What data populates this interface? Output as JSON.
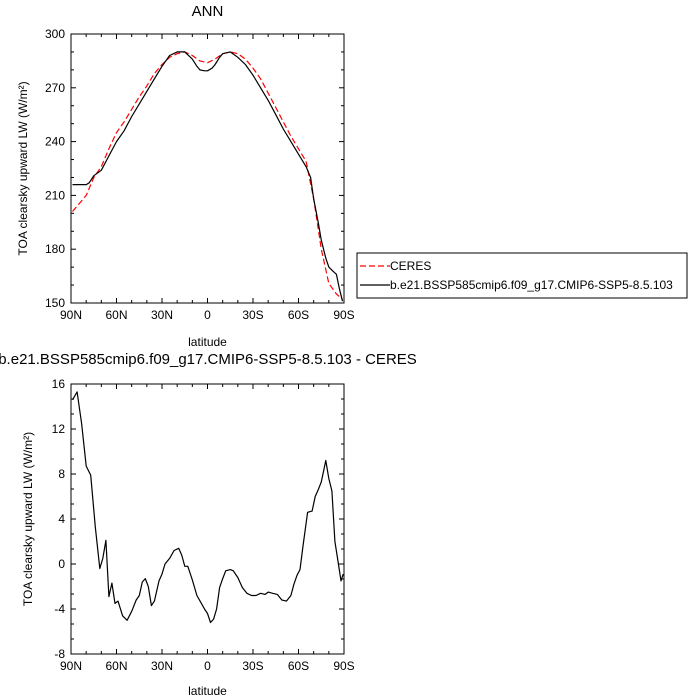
{
  "chart_data": [
    {
      "type": "line",
      "title": "ANN",
      "xlabel": "latitude",
      "ylabel": "TOA clearsky upward LW (W/m²)",
      "xlim": [
        90,
        -90
      ],
      "ylim": [
        150,
        300
      ],
      "x_ticks": [
        "90N",
        "60N",
        "30N",
        "0",
        "30S",
        "60S",
        "90S"
      ],
      "y_ticks": [
        "150",
        "180",
        "210",
        "240",
        "270",
        "300"
      ],
      "legend_position": "right",
      "series": [
        {
          "name": "CERES",
          "style": "dashed",
          "color": "#ff0000",
          "x": [
            89,
            85,
            80,
            75,
            70,
            65,
            60,
            55,
            50,
            45,
            40,
            35,
            30,
            25,
            20,
            15,
            10,
            5,
            0,
            -5,
            -10,
            -15,
            -20,
            -25,
            -30,
            -35,
            -40,
            -45,
            -50,
            -55,
            -60,
            -65,
            -70,
            -75,
            -80,
            -85,
            -89
          ],
          "y": [
            201,
            205,
            210,
            220,
            226,
            236,
            245,
            251,
            258,
            265,
            271,
            278,
            283,
            287,
            289,
            290,
            288,
            285,
            284,
            286,
            289,
            290,
            289,
            286,
            281,
            275,
            267,
            259,
            251,
            243,
            236,
            229,
            208,
            180,
            161,
            155,
            152
          ]
        },
        {
          "name": "b.e21.BSSP585cmip6.f09_g17.CMIP6-SSP5-8.5.103",
          "style": "solid",
          "color": "#000000",
          "x": [
            89,
            85,
            80,
            78,
            75,
            70,
            65,
            60,
            55,
            50,
            45,
            40,
            35,
            30,
            25,
            20,
            15,
            10,
            7,
            5,
            2,
            0,
            -3,
            -5,
            -8,
            -10,
            -15,
            -20,
            -25,
            -30,
            -35,
            -40,
            -45,
            -50,
            -55,
            -60,
            -65,
            -68,
            -70,
            -73,
            -75,
            -78,
            -80,
            -83,
            -85,
            -87,
            -89
          ],
          "y": [
            216,
            216,
            216,
            217,
            221,
            224,
            232,
            240,
            246,
            254,
            261,
            268,
            275,
            282,
            288,
            290,
            290,
            286,
            282,
            280,
            279.5,
            279.5,
            281,
            283,
            287,
            289,
            290,
            287,
            283,
            277,
            270,
            263,
            255,
            247,
            240,
            233,
            226,
            220,
            208,
            195,
            185,
            175,
            170,
            167.5,
            166,
            158,
            151
          ]
        }
      ]
    },
    {
      "type": "line",
      "title": "b.e21.BSSP585cmip6.f09_g17.CMIP6-SSP5-8.5.103 - CERES",
      "xlabel": "latitude",
      "ylabel": "TOA clearsky upward LW (W/m²)",
      "xlim": [
        90,
        -90
      ],
      "ylim": [
        -8,
        16
      ],
      "x_ticks": [
        "90N",
        "60N",
        "30N",
        "0",
        "30S",
        "60S",
        "90S"
      ],
      "y_ticks": [
        "-8",
        "-4",
        "0",
        "4",
        "8",
        "12",
        "16"
      ],
      "series": [
        {
          "style": "solid",
          "color": "#000000",
          "x": [
            89,
            86,
            83,
            80,
            77,
            74,
            71,
            69,
            67,
            65,
            63,
            61,
            59,
            56,
            53,
            50,
            47,
            45,
            43,
            41,
            39,
            37,
            35,
            32,
            30,
            28,
            25,
            22,
            19,
            17,
            15,
            13,
            10,
            7,
            4,
            2,
            0,
            -2,
            -4,
            -6,
            -8,
            -10,
            -12,
            -15,
            -17,
            -20,
            -23,
            -26,
            -29,
            -32,
            -35,
            -38,
            -40,
            -43,
            -46,
            -49,
            -52,
            -55,
            -57,
            -59,
            -61,
            -63,
            -66,
            -69,
            -71,
            -73,
            -75,
            -78,
            -80,
            -82,
            -84,
            -86,
            -88,
            -89.5
          ],
          "y": [
            14.6,
            15.3,
            12.5,
            8.7,
            7.9,
            3.3,
            -0.4,
            0.5,
            2.1,
            -2.9,
            -1.7,
            -3.5,
            -3.3,
            -4.6,
            -5.0,
            -4.2,
            -3.2,
            -2.8,
            -1.6,
            -1.3,
            -2.0,
            -3.7,
            -3.3,
            -1.5,
            -0.9,
            0.0,
            0.5,
            1.2,
            1.4,
            0.8,
            -0.2,
            -0.2,
            -1.4,
            -2.8,
            -3.5,
            -4.0,
            -4.4,
            -5.2,
            -4.9,
            -4.0,
            -2.1,
            -1.3,
            -0.6,
            -0.5,
            -0.6,
            -1.2,
            -2.1,
            -2.6,
            -2.8,
            -2.8,
            -2.6,
            -2.7,
            -2.5,
            -2.6,
            -2.7,
            -3.2,
            -3.3,
            -2.8,
            -1.8,
            -1.0,
            -0.5,
            1.6,
            4.6,
            4.7,
            6.0,
            6.6,
            7.3,
            9.2,
            7.6,
            6.5,
            2.0,
            0.3,
            -1.5,
            -0.9
          ]
        }
      ]
    }
  ]
}
